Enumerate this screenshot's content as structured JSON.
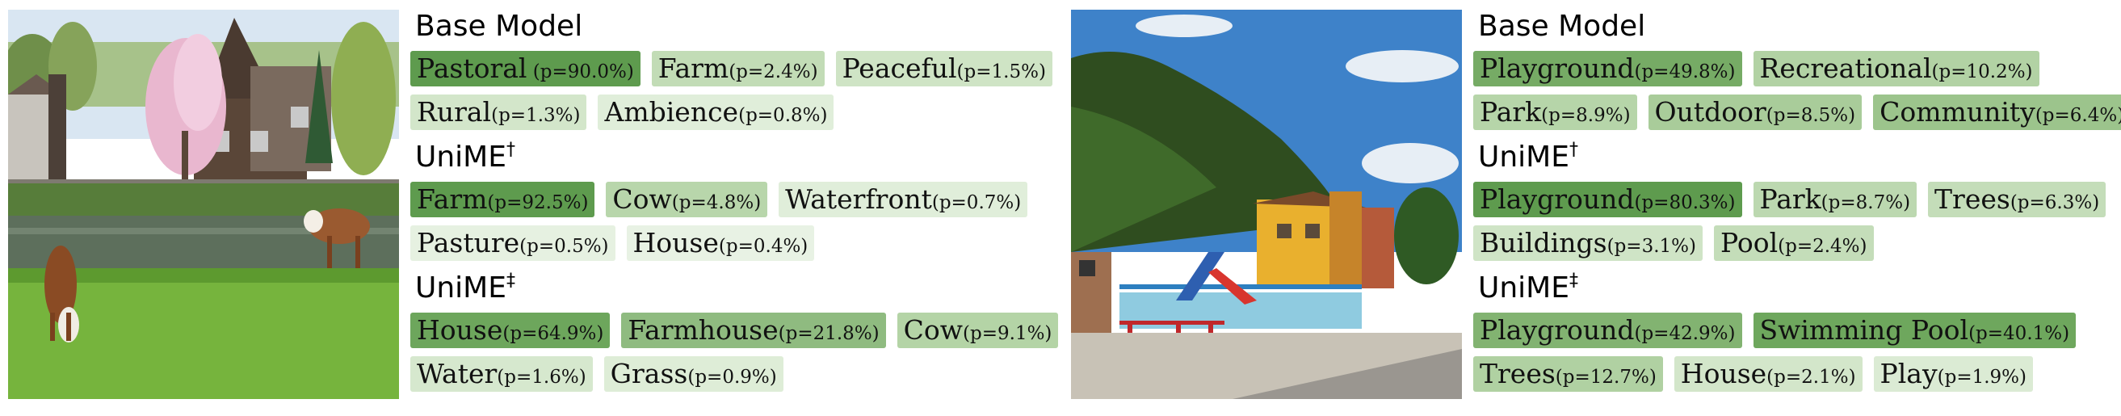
{
  "left": {
    "image_desc": "farm",
    "sections": [
      {
        "title": "Base Model",
        "sup": "",
        "rows": [
          [
            {
              "label": "Pastoral",
              "prob": " (p=90.0%)",
              "color": "#5e9b4e"
            },
            {
              "label": "Farm",
              "prob": "(p=2.4%)",
              "color": "#c2dcb6"
            },
            {
              "label": "Peaceful",
              "prob": "(p=1.5%)",
              "color": "#cfe4c5"
            }
          ],
          [
            {
              "label": "Rural",
              "prob": "(p=1.3%)",
              "color": "#d3e6ca"
            },
            {
              "label": "Ambience",
              "prob": "(p=0.8%)",
              "color": "#e0eeda"
            }
          ]
        ]
      },
      {
        "title": "UniME",
        "sup": "†",
        "rows": [
          [
            {
              "label": "Farm",
              "prob": "(p=92.5%)",
              "color": "#5e9b4e"
            },
            {
              "label": "Cow",
              "prob": "(p=4.8%)",
              "color": "#b8d6ab"
            },
            {
              "label": "Waterfront",
              "prob": "(p=0.7%)",
              "color": "#e0eeda"
            }
          ],
          [
            {
              "label": "Pasture",
              "prob": "(p=0.5%)",
              "color": "#e6f1e1"
            },
            {
              "label": "House",
              "prob": "(p=0.4%)",
              "color": "#e8f2e4"
            }
          ]
        ]
      },
      {
        "title": "UniME",
        "sup": "‡",
        "rows": [
          [
            {
              "label": "House",
              "prob": "(p=64.9%)",
              "color": "#6da65c"
            },
            {
              "label": "Farmhouse",
              "prob": "(p=21.8%)",
              "color": "#8fbb80"
            },
            {
              "label": "Cow",
              "prob": "(p=9.1%)",
              "color": "#b4d4a6"
            }
          ],
          [
            {
              "label": "Water",
              "prob": "(p=1.6%)",
              "color": "#d6e8ce"
            },
            {
              "label": "Grass",
              "prob": "(p=0.9%)",
              "color": "#deedd7"
            }
          ]
        ]
      }
    ]
  },
  "right": {
    "image_desc": "playground",
    "sections": [
      {
        "title": "Base Model",
        "sup": "",
        "rows": [
          [
            {
              "label": "Playground",
              "prob": "(p=49.8%)",
              "color": "#76ab65"
            },
            {
              "label": "Recreational",
              "prob": "(p=10.2%)",
              "color": "#b2d2a4"
            }
          ],
          [
            {
              "label": "Park",
              "prob": "(p=8.9%)",
              "color": "#b6d5a9"
            },
            {
              "label": "Outdoor",
              "prob": "(p=8.5%)",
              "color": "#a9cc9a"
            },
            {
              "label": "Community",
              "prob": "(p=6.4%)",
              "color": "#9cc48c"
            }
          ]
        ]
      },
      {
        "title": "UniME",
        "sup": "†",
        "rows": [
          [
            {
              "label": "Playground",
              "prob": "(p=80.3%)",
              "color": "#5e9b4e"
            },
            {
              "label": "Park",
              "prob": "(p=8.7%)",
              "color": "#bcd8b0"
            },
            {
              "label": "Trees",
              "prob": "(p=6.3%)",
              "color": "#c4ddb9"
            }
          ],
          [
            {
              "label": "Buildings",
              "prob": "(p=3.1%)",
              "color": "#cfe4c6"
            },
            {
              "label": "Pool",
              "prob": "(p=2.4%)",
              "color": "#c4ddb9"
            }
          ]
        ]
      },
      {
        "title": "UniME",
        "sup": "‡",
        "rows": [
          [
            {
              "label": "Playground",
              "prob": "(p=42.9%)",
              "color": "#82b371"
            },
            {
              "label": "Swimming Pool",
              "prob": "(p=40.1%)",
              "color": "#6ea75d"
            }
          ],
          [
            {
              "label": "Trees",
              "prob": "(p=12.7%)",
              "color": "#b0d1a2"
            },
            {
              "label": "House",
              "prob": "(p=2.1%)",
              "color": "#d3e6ca"
            },
            {
              "label": "Play",
              "prob": "(p=1.9%)",
              "color": "#dbebd4"
            }
          ]
        ]
      }
    ]
  }
}
